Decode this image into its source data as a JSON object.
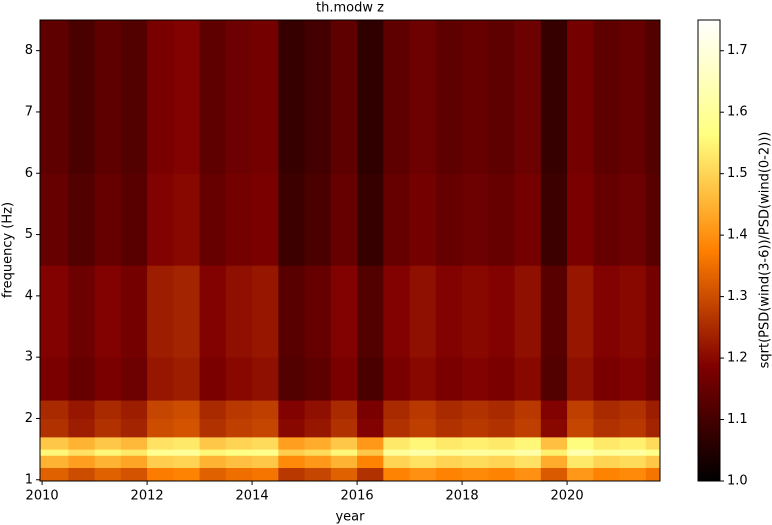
{
  "chart_data": {
    "type": "heatmap",
    "title": "th.modw z",
    "x_label": "year",
    "y_label": "frequency (Hz)",
    "colorbar_label": "sqrt(PSD(wind(3-6))/PSD(wind(0-2)))",
    "colormap": "afmhot",
    "x": [
      2009.96,
      2010.5,
      2011,
      2011.5,
      2012,
      2012.5,
      2013,
      2013.5,
      2014,
      2014.5,
      2015,
      2015.5,
      2016,
      2016.5,
      2017,
      2017.5,
      2018,
      2018.5,
      2019,
      2019.5,
      2020,
      2020.5,
      2021,
      2021.5,
      2021.77
    ],
    "y": [
      0.98,
      1.2,
      1.4,
      1.5,
      1.7,
      2.0,
      2.3,
      3,
      4.5,
      6,
      8.5
    ],
    "z": [
      [
        1.33,
        1.3,
        1.33,
        1.31,
        1.37,
        1.38,
        1.33,
        1.35,
        1.36,
        1.27,
        1.29,
        1.33,
        1.26,
        1.38,
        1.4,
        1.38,
        1.39,
        1.38,
        1.4,
        1.32,
        1.41,
        1.38,
        1.39,
        1.36
      ],
      [
        1.45,
        1.42,
        1.45,
        1.43,
        1.49,
        1.5,
        1.45,
        1.47,
        1.48,
        1.39,
        1.41,
        1.45,
        1.38,
        1.5,
        1.52,
        1.5,
        1.51,
        1.5,
        1.52,
        1.44,
        1.53,
        1.5,
        1.51,
        1.48
      ],
      [
        1.55,
        1.52,
        1.55,
        1.53,
        1.59,
        1.6,
        1.55,
        1.57,
        1.58,
        1.49,
        1.51,
        1.55,
        1.48,
        1.6,
        1.62,
        1.6,
        1.61,
        1.6,
        1.62,
        1.54,
        1.63,
        1.6,
        1.61,
        1.58
      ],
      [
        1.48,
        1.45,
        1.48,
        1.46,
        1.52,
        1.53,
        1.48,
        1.5,
        1.51,
        1.42,
        1.44,
        1.48,
        1.41,
        1.53,
        1.55,
        1.53,
        1.54,
        1.53,
        1.55,
        1.47,
        1.56,
        1.53,
        1.54,
        1.51
      ],
      [
        1.26,
        1.23,
        1.26,
        1.24,
        1.3,
        1.31,
        1.26,
        1.28,
        1.29,
        1.2,
        1.22,
        1.26,
        1.19,
        1.26,
        1.28,
        1.26,
        1.27,
        1.26,
        1.28,
        1.2,
        1.29,
        1.26,
        1.27,
        1.24
      ],
      [
        1.25,
        1.22,
        1.25,
        1.23,
        1.29,
        1.3,
        1.25,
        1.27,
        1.28,
        1.19,
        1.21,
        1.25,
        1.18,
        1.25,
        1.27,
        1.25,
        1.26,
        1.25,
        1.27,
        1.19,
        1.28,
        1.25,
        1.26,
        1.23
      ],
      [
        1.18,
        1.15,
        1.18,
        1.16,
        1.22,
        1.23,
        1.18,
        1.2,
        1.21,
        1.12,
        1.14,
        1.18,
        1.11,
        1.18,
        1.2,
        1.18,
        1.19,
        1.18,
        1.2,
        1.12,
        1.21,
        1.18,
        1.19,
        1.16
      ],
      [
        1.19,
        1.16,
        1.19,
        1.17,
        1.23,
        1.24,
        1.19,
        1.21,
        1.22,
        1.13,
        1.15,
        1.19,
        1.12,
        1.19,
        1.21,
        1.19,
        1.2,
        1.19,
        1.21,
        1.13,
        1.22,
        1.19,
        1.2,
        1.17
      ],
      [
        1.15,
        1.12,
        1.15,
        1.13,
        1.19,
        1.2,
        1.15,
        1.17,
        1.18,
        1.09,
        1.11,
        1.15,
        1.08,
        1.15,
        1.17,
        1.15,
        1.16,
        1.15,
        1.17,
        1.09,
        1.18,
        1.15,
        1.16,
        1.13
      ],
      [
        1.14,
        1.11,
        1.14,
        1.12,
        1.18,
        1.19,
        1.14,
        1.16,
        1.17,
        1.08,
        1.1,
        1.14,
        1.07,
        1.14,
        1.16,
        1.14,
        1.15,
        1.14,
        1.16,
        1.08,
        1.17,
        1.14,
        1.15,
        1.12
      ]
    ],
    "xlim": [
      2009.96,
      2021.77
    ],
    "xticks": [
      2010,
      2012,
      2014,
      2016,
      2018,
      2020
    ],
    "ylim": [
      0.98,
      8.5
    ],
    "yticks": [
      1,
      2,
      3,
      4,
      5,
      6,
      7,
      8
    ],
    "clim": [
      1.0,
      1.75
    ],
    "cticks": [
      {
        "value": 1,
        "label": "1.0"
      },
      1.1,
      1.2,
      1.3,
      1.4,
      1.5,
      1.6,
      1.7
    ],
    "grid": false
  }
}
